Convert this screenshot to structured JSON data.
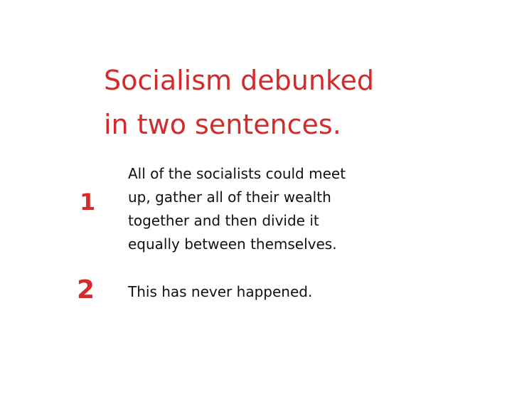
{
  "title": {
    "line1": "Socialism debunked",
    "line2": "in two sentences."
  },
  "items": [
    {
      "number": "1",
      "lines": [
        "All of the socialists could meet",
        "up, gather all of their wealth",
        "together and then divide it",
        "equally between themselves."
      ]
    },
    {
      "number": "2",
      "lines": [
        "This has never happened."
      ]
    }
  ],
  "colors": {
    "accent": "#d42a2a",
    "text": "#111111",
    "background": "#ffffff"
  }
}
